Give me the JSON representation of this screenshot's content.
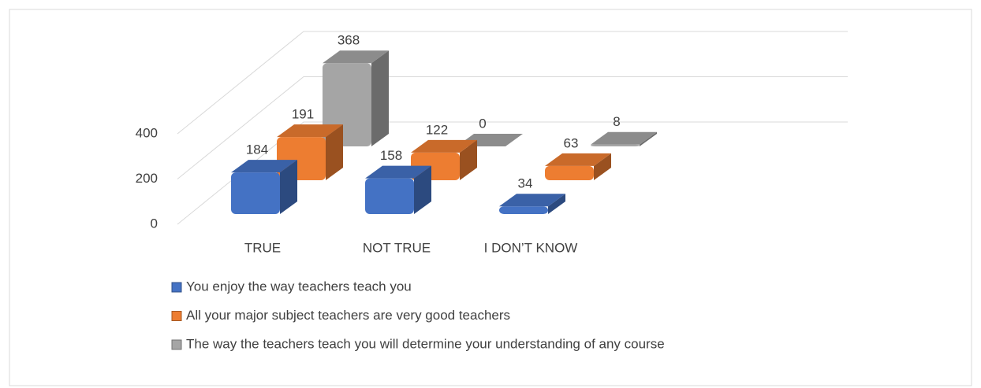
{
  "chart_data": {
    "type": "bar3d",
    "categories": [
      "TRUE",
      "NOT TRUE",
      "I DON’T KNOW"
    ],
    "series": [
      {
        "name": "You enjoy the way teachers teach you",
        "color": "#4472c4",
        "values": [
          184,
          158,
          34
        ]
      },
      {
        "name": "All your major subject teachers are very good teachers",
        "color": "#ed7d31",
        "values": [
          191,
          122,
          63
        ]
      },
      {
        "name": "The way the teachers teach you will determine your understanding of any course",
        "color": "#a5a5a5",
        "values": [
          368,
          0,
          8
        ]
      }
    ],
    "ylim": [
      0,
      400
    ],
    "yticks": [
      0,
      200,
      400
    ],
    "grid": true
  }
}
